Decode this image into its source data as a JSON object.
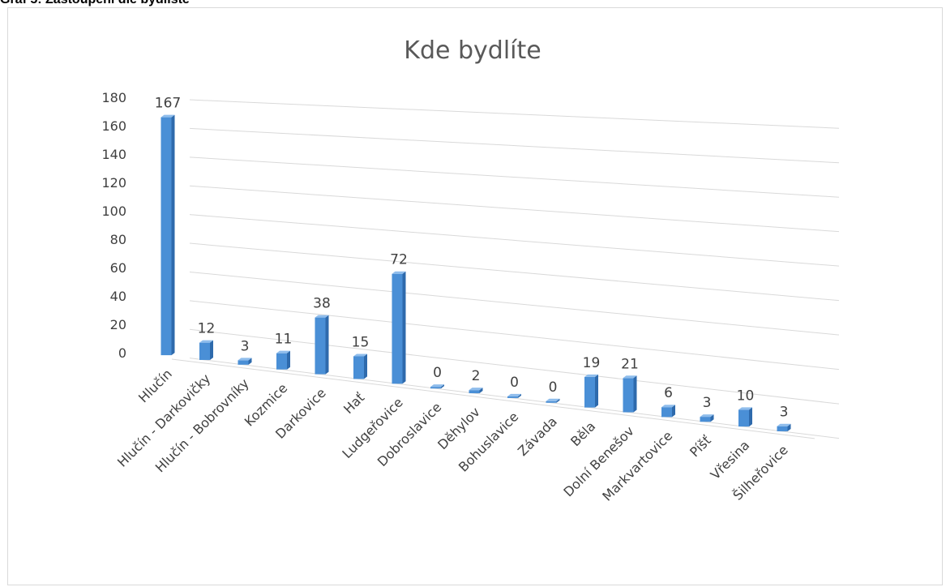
{
  "figure_caption": "Graf 5: Zastoupení dle bydliště",
  "chart_data": {
    "type": "bar",
    "title": "Kde bydlíte",
    "categories": [
      "Hlučín",
      "Hlučín - Darkovičky",
      "Hlučín - Bobrovníky",
      "Kozmice",
      "Darkovice",
      "Hať",
      "Ludgeřovice",
      "Dobroslavice",
      "Děhylov",
      "Bohuslavice",
      "Závada",
      "Běla",
      "Dolní Benešov",
      "Markvartovice",
      "Píšť",
      "Vřesina",
      "Šilheřovice"
    ],
    "values": [
      167,
      12,
      3,
      11,
      38,
      15,
      72,
      0,
      2,
      0,
      0,
      19,
      21,
      6,
      3,
      10,
      3
    ],
    "ylim": [
      0,
      180
    ],
    "yticks": [
      0,
      20,
      40,
      60,
      80,
      100,
      120,
      140,
      160,
      180
    ],
    "grid": true,
    "legend": "none",
    "bar_color": "#4a8fd6",
    "bar_side_color": "#2e6aac",
    "bar_top_color": "#8fbdec",
    "grid_color": "#d9d9d9"
  }
}
